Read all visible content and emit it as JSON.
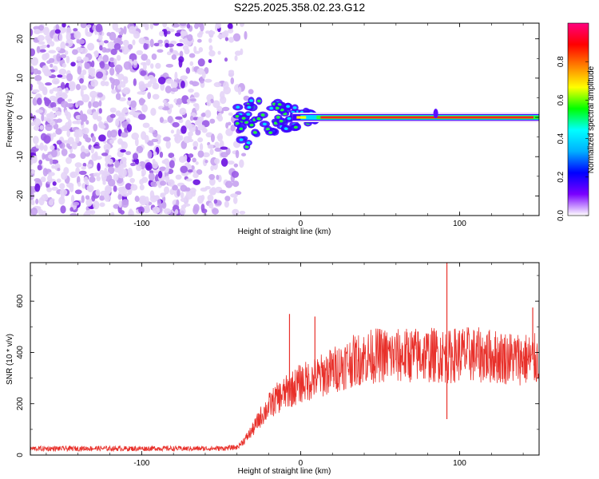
{
  "chart_data": [
    {
      "type": "heatmap",
      "title": "S225.2025.358.02.23.G12",
      "xlabel": "Height of straight line (km)",
      "ylabel": "Frequency (Hz)",
      "xlim": [
        -170,
        150
      ],
      "ylim": [
        -25,
        24
      ],
      "xticks": [
        -100,
        0,
        100
      ],
      "xtick_labels": [
        "-100",
        "0",
        "100"
      ],
      "yticks": [
        -20,
        -10,
        0,
        10,
        20
      ],
      "ytick_labels": [
        "-20",
        "-10",
        "0",
        "10",
        "20"
      ],
      "colorbar": {
        "label": "Normalized spectral amplitude",
        "range": [
          0,
          1
        ],
        "ticks": [
          0.0,
          0.2,
          0.4,
          0.6,
          0.8
        ],
        "tick_labels": [
          "0.0",
          "0.2",
          "0.4",
          "0.6",
          "0.8"
        ],
        "colors": [
          "#ffffff",
          "#7a00ff",
          "#0000ff",
          "#00b0ff",
          "#00ffff",
          "#00ff00",
          "#ffff00",
          "#ff8000",
          "#ff0000",
          "#ff0080"
        ]
      },
      "description_of_field": {
        "noise_region_x": [
          -170,
          -40
        ],
        "transition_x": [
          -40,
          10
        ],
        "tone_band_x": [
          10,
          150
        ],
        "tone_frequency": 0,
        "tone_amplitude": 1.0
      }
    },
    {
      "type": "line",
      "title": "",
      "xlabel": "Height of straight line (km)",
      "ylabel": "SNR (10 * v/v)",
      "xlim": [
        -170,
        150
      ],
      "ylim": [
        0,
        750
      ],
      "xticks": [
        -100,
        0,
        100
      ],
      "xtick_labels": [
        "-100",
        "0",
        "100"
      ],
      "yticks": [
        0,
        200,
        400,
        600
      ],
      "ytick_labels": [
        "0",
        "200",
        "400",
        "600"
      ],
      "series": [
        {
          "name": "SNR",
          "color": "#e8302a",
          "x": [
            -170,
            -150,
            -130,
            -110,
            -90,
            -70,
            -50,
            -40,
            -35,
            -30,
            -25,
            -20,
            -15,
            -10,
            -5,
            0,
            10,
            20,
            30,
            40,
            50,
            60,
            70,
            80,
            90,
            93,
            96,
            100,
            110,
            120,
            130,
            140,
            150
          ],
          "values": [
            25,
            25,
            26,
            25,
            26,
            25,
            26,
            30,
            60,
            100,
            150,
            190,
            220,
            240,
            260,
            280,
            300,
            330,
            360,
            380,
            390,
            385,
            390,
            390,
            390,
            380,
            390,
            395,
            390,
            385,
            380,
            375,
            370
          ]
        }
      ],
      "spikes": [
        {
          "x": -7,
          "value": 550
        },
        {
          "x": 9,
          "value": 540
        },
        {
          "x": 92,
          "value": 750
        },
        {
          "x": 92,
          "value": 140
        },
        {
          "x": 146,
          "value": 575
        }
      ]
    }
  ]
}
